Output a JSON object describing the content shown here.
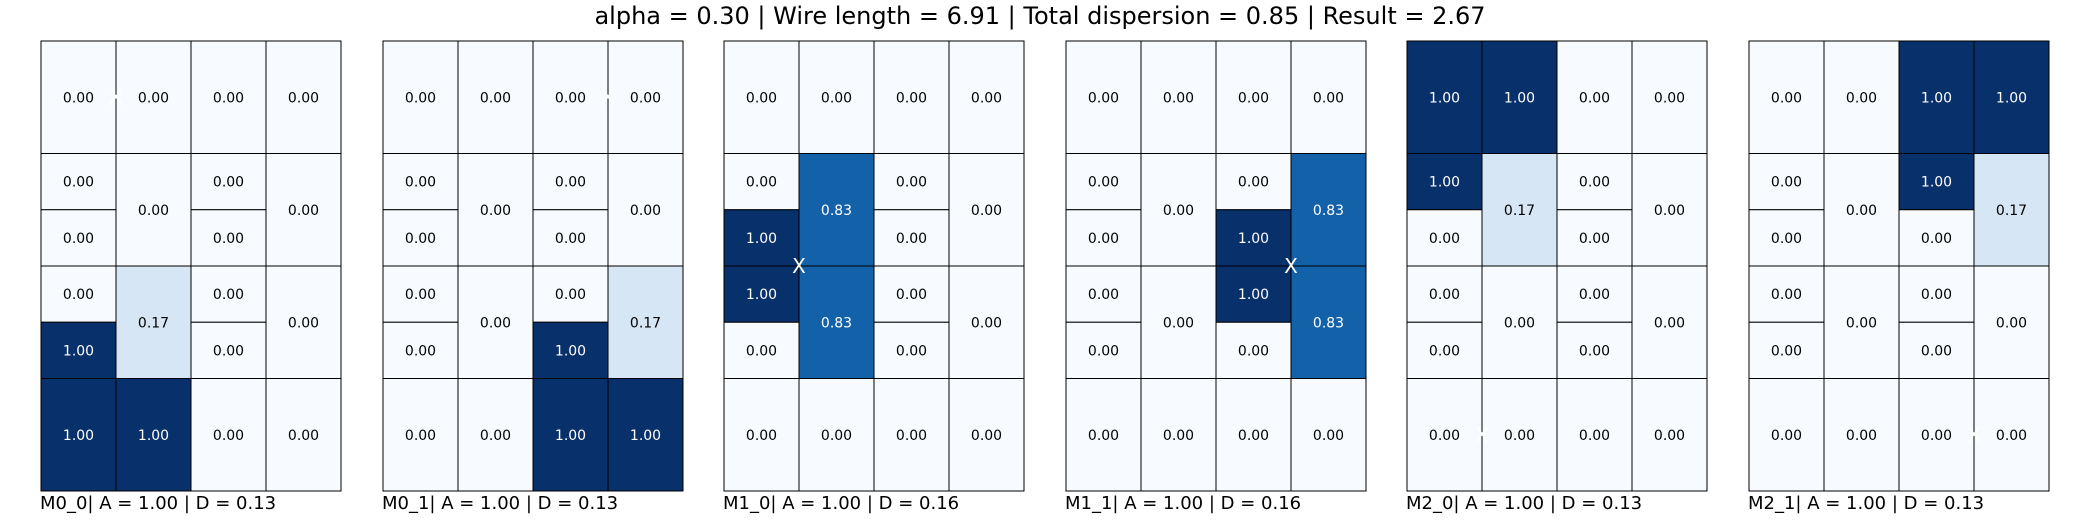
{
  "title": "alpha = 0.30 | Wire length = 6.91 | Total dispersion = 0.85 | Result = 2.67",
  "chart_data": [
    {
      "type": "heatmap",
      "caption": "M0_0| A = 1.00 | D = 0.13",
      "columns": 4,
      "rows": 4,
      "marker": {
        "symbol": "X",
        "x": 1.0,
        "y": 0.5
      },
      "cells": [
        {
          "row": 0,
          "col": 0,
          "rowspan": 1,
          "sub": 0,
          "value": 0.0
        },
        {
          "row": 0,
          "col": 1,
          "rowspan": 1,
          "sub": 0,
          "value": 0.0
        },
        {
          "row": 0,
          "col": 2,
          "rowspan": 1,
          "sub": 0,
          "value": 0.0
        },
        {
          "row": 0,
          "col": 3,
          "rowspan": 1,
          "sub": 0,
          "value": 0.0
        },
        {
          "row": 1,
          "col": 0,
          "rowspan": 0.5,
          "sub": 0,
          "value": 0.0
        },
        {
          "row": 1,
          "col": 0,
          "rowspan": 0.5,
          "sub": 1,
          "value": 0.0
        },
        {
          "row": 1,
          "col": 1,
          "rowspan": 1,
          "sub": 0,
          "value": 0.0
        },
        {
          "row": 1,
          "col": 2,
          "rowspan": 0.5,
          "sub": 0,
          "value": 0.0
        },
        {
          "row": 1,
          "col": 2,
          "rowspan": 0.5,
          "sub": 1,
          "value": 0.0
        },
        {
          "row": 1,
          "col": 3,
          "rowspan": 1,
          "sub": 0,
          "value": 0.0
        },
        {
          "row": 2,
          "col": 0,
          "rowspan": 0.5,
          "sub": 0,
          "value": 0.0
        },
        {
          "row": 2,
          "col": 0,
          "rowspan": 0.5,
          "sub": 1,
          "value": 1.0
        },
        {
          "row": 2,
          "col": 1,
          "rowspan": 1,
          "sub": 0,
          "value": 0.17
        },
        {
          "row": 2,
          "col": 2,
          "rowspan": 0.5,
          "sub": 0,
          "value": 0.0
        },
        {
          "row": 2,
          "col": 2,
          "rowspan": 0.5,
          "sub": 1,
          "value": 0.0
        },
        {
          "row": 2,
          "col": 3,
          "rowspan": 1,
          "sub": 0,
          "value": 0.0
        },
        {
          "row": 3,
          "col": 0,
          "rowspan": 1,
          "sub": 0,
          "value": 1.0
        },
        {
          "row": 3,
          "col": 1,
          "rowspan": 1,
          "sub": 0,
          "value": 1.0
        },
        {
          "row": 3,
          "col": 2,
          "rowspan": 1,
          "sub": 0,
          "value": 0.0
        },
        {
          "row": 3,
          "col": 3,
          "rowspan": 1,
          "sub": 0,
          "value": 0.0
        }
      ]
    },
    {
      "type": "heatmap",
      "caption": "M0_1| A = 1.00 | D = 0.13",
      "columns": 4,
      "rows": 4,
      "marker": {
        "symbol": "X",
        "x": 3.0,
        "y": 0.5
      },
      "cells": [
        {
          "row": 0,
          "col": 0,
          "rowspan": 1,
          "sub": 0,
          "value": 0.0
        },
        {
          "row": 0,
          "col": 1,
          "rowspan": 1,
          "sub": 0,
          "value": 0.0
        },
        {
          "row": 0,
          "col": 2,
          "rowspan": 1,
          "sub": 0,
          "value": 0.0
        },
        {
          "row": 0,
          "col": 3,
          "rowspan": 1,
          "sub": 0,
          "value": 0.0
        },
        {
          "row": 1,
          "col": 0,
          "rowspan": 0.5,
          "sub": 0,
          "value": 0.0
        },
        {
          "row": 1,
          "col": 0,
          "rowspan": 0.5,
          "sub": 1,
          "value": 0.0
        },
        {
          "row": 1,
          "col": 1,
          "rowspan": 1,
          "sub": 0,
          "value": 0.0
        },
        {
          "row": 1,
          "col": 2,
          "rowspan": 0.5,
          "sub": 0,
          "value": 0.0
        },
        {
          "row": 1,
          "col": 2,
          "rowspan": 0.5,
          "sub": 1,
          "value": 0.0
        },
        {
          "row": 1,
          "col": 3,
          "rowspan": 1,
          "sub": 0,
          "value": 0.0
        },
        {
          "row": 2,
          "col": 0,
          "rowspan": 0.5,
          "sub": 0,
          "value": 0.0
        },
        {
          "row": 2,
          "col": 0,
          "rowspan": 0.5,
          "sub": 1,
          "value": 0.0
        },
        {
          "row": 2,
          "col": 1,
          "rowspan": 1,
          "sub": 0,
          "value": 0.0
        },
        {
          "row": 2,
          "col": 2,
          "rowspan": 0.5,
          "sub": 0,
          "value": 0.0
        },
        {
          "row": 2,
          "col": 2,
          "rowspan": 0.5,
          "sub": 1,
          "value": 1.0
        },
        {
          "row": 2,
          "col": 3,
          "rowspan": 1,
          "sub": 0,
          "value": 0.17
        },
        {
          "row": 3,
          "col": 0,
          "rowspan": 1,
          "sub": 0,
          "value": 0.0
        },
        {
          "row": 3,
          "col": 1,
          "rowspan": 1,
          "sub": 0,
          "value": 0.0
        },
        {
          "row": 3,
          "col": 2,
          "rowspan": 1,
          "sub": 0,
          "value": 1.0
        },
        {
          "row": 3,
          "col": 3,
          "rowspan": 1,
          "sub": 0,
          "value": 1.0
        }
      ]
    },
    {
      "type": "heatmap",
      "caption": "M1_0| A = 1.00 | D = 0.16",
      "columns": 4,
      "rows": 4,
      "marker": {
        "symbol": "X",
        "x": 1.0,
        "y": 2.0
      },
      "cells": [
        {
          "row": 0,
          "col": 0,
          "rowspan": 1,
          "sub": 0,
          "value": 0.0
        },
        {
          "row": 0,
          "col": 1,
          "rowspan": 1,
          "sub": 0,
          "value": 0.0
        },
        {
          "row": 0,
          "col": 2,
          "rowspan": 1,
          "sub": 0,
          "value": 0.0
        },
        {
          "row": 0,
          "col": 3,
          "rowspan": 1,
          "sub": 0,
          "value": 0.0
        },
        {
          "row": 1,
          "col": 0,
          "rowspan": 0.5,
          "sub": 0,
          "value": 0.0
        },
        {
          "row": 1,
          "col": 0,
          "rowspan": 0.5,
          "sub": 1,
          "value": 1.0
        },
        {
          "row": 1,
          "col": 1,
          "rowspan": 1,
          "sub": 0,
          "value": 0.83
        },
        {
          "row": 1,
          "col": 2,
          "rowspan": 0.5,
          "sub": 0,
          "value": 0.0
        },
        {
          "row": 1,
          "col": 2,
          "rowspan": 0.5,
          "sub": 1,
          "value": 0.0
        },
        {
          "row": 1,
          "col": 3,
          "rowspan": 1,
          "sub": 0,
          "value": 0.0
        },
        {
          "row": 2,
          "col": 0,
          "rowspan": 0.5,
          "sub": 0,
          "value": 1.0
        },
        {
          "row": 2,
          "col": 0,
          "rowspan": 0.5,
          "sub": 1,
          "value": 0.0
        },
        {
          "row": 2,
          "col": 1,
          "rowspan": 1,
          "sub": 0,
          "value": 0.83
        },
        {
          "row": 2,
          "col": 2,
          "rowspan": 0.5,
          "sub": 0,
          "value": 0.0
        },
        {
          "row": 2,
          "col": 2,
          "rowspan": 0.5,
          "sub": 1,
          "value": 0.0
        },
        {
          "row": 2,
          "col": 3,
          "rowspan": 1,
          "sub": 0,
          "value": 0.0
        },
        {
          "row": 3,
          "col": 0,
          "rowspan": 1,
          "sub": 0,
          "value": 0.0
        },
        {
          "row": 3,
          "col": 1,
          "rowspan": 1,
          "sub": 0,
          "value": 0.0
        },
        {
          "row": 3,
          "col": 2,
          "rowspan": 1,
          "sub": 0,
          "value": 0.0
        },
        {
          "row": 3,
          "col": 3,
          "rowspan": 1,
          "sub": 0,
          "value": 0.0
        }
      ]
    },
    {
      "type": "heatmap",
      "caption": "M1_1| A = 1.00 | D = 0.16",
      "columns": 4,
      "rows": 4,
      "marker": {
        "symbol": "X",
        "x": 3.0,
        "y": 2.0
      },
      "cells": [
        {
          "row": 0,
          "col": 0,
          "rowspan": 1,
          "sub": 0,
          "value": 0.0
        },
        {
          "row": 0,
          "col": 1,
          "rowspan": 1,
          "sub": 0,
          "value": 0.0
        },
        {
          "row": 0,
          "col": 2,
          "rowspan": 1,
          "sub": 0,
          "value": 0.0
        },
        {
          "row": 0,
          "col": 3,
          "rowspan": 1,
          "sub": 0,
          "value": 0.0
        },
        {
          "row": 1,
          "col": 0,
          "rowspan": 0.5,
          "sub": 0,
          "value": 0.0
        },
        {
          "row": 1,
          "col": 0,
          "rowspan": 0.5,
          "sub": 1,
          "value": 0.0
        },
        {
          "row": 1,
          "col": 1,
          "rowspan": 1,
          "sub": 0,
          "value": 0.0
        },
        {
          "row": 1,
          "col": 2,
          "rowspan": 0.5,
          "sub": 0,
          "value": 0.0
        },
        {
          "row": 1,
          "col": 2,
          "rowspan": 0.5,
          "sub": 1,
          "value": 1.0
        },
        {
          "row": 1,
          "col": 3,
          "rowspan": 1,
          "sub": 0,
          "value": 0.83
        },
        {
          "row": 2,
          "col": 0,
          "rowspan": 0.5,
          "sub": 0,
          "value": 0.0
        },
        {
          "row": 2,
          "col": 0,
          "rowspan": 0.5,
          "sub": 1,
          "value": 0.0
        },
        {
          "row": 2,
          "col": 1,
          "rowspan": 1,
          "sub": 0,
          "value": 0.0
        },
        {
          "row": 2,
          "col": 2,
          "rowspan": 0.5,
          "sub": 0,
          "value": 1.0
        },
        {
          "row": 2,
          "col": 2,
          "rowspan": 0.5,
          "sub": 1,
          "value": 0.0
        },
        {
          "row": 2,
          "col": 3,
          "rowspan": 1,
          "sub": 0,
          "value": 0.83
        },
        {
          "row": 3,
          "col": 0,
          "rowspan": 1,
          "sub": 0,
          "value": 0.0
        },
        {
          "row": 3,
          "col": 1,
          "rowspan": 1,
          "sub": 0,
          "value": 0.0
        },
        {
          "row": 3,
          "col": 2,
          "rowspan": 1,
          "sub": 0,
          "value": 0.0
        },
        {
          "row": 3,
          "col": 3,
          "rowspan": 1,
          "sub": 0,
          "value": 0.0
        }
      ]
    },
    {
      "type": "heatmap",
      "caption": "M2_0| A = 1.00 | D = 0.13",
      "columns": 4,
      "rows": 4,
      "marker": {
        "symbol": "X",
        "x": 1.0,
        "y": 3.5
      },
      "cells": [
        {
          "row": 0,
          "col": 0,
          "rowspan": 1,
          "sub": 0,
          "value": 1.0
        },
        {
          "row": 0,
          "col": 1,
          "rowspan": 1,
          "sub": 0,
          "value": 1.0
        },
        {
          "row": 0,
          "col": 2,
          "rowspan": 1,
          "sub": 0,
          "value": 0.0
        },
        {
          "row": 0,
          "col": 3,
          "rowspan": 1,
          "sub": 0,
          "value": 0.0
        },
        {
          "row": 1,
          "col": 0,
          "rowspan": 0.5,
          "sub": 0,
          "value": 1.0
        },
        {
          "row": 1,
          "col": 0,
          "rowspan": 0.5,
          "sub": 1,
          "value": 0.0
        },
        {
          "row": 1,
          "col": 1,
          "rowspan": 1,
          "sub": 0,
          "value": 0.17
        },
        {
          "row": 1,
          "col": 2,
          "rowspan": 0.5,
          "sub": 0,
          "value": 0.0
        },
        {
          "row": 1,
          "col": 2,
          "rowspan": 0.5,
          "sub": 1,
          "value": 0.0
        },
        {
          "row": 1,
          "col": 3,
          "rowspan": 1,
          "sub": 0,
          "value": 0.0
        },
        {
          "row": 2,
          "col": 0,
          "rowspan": 0.5,
          "sub": 0,
          "value": 0.0
        },
        {
          "row": 2,
          "col": 0,
          "rowspan": 0.5,
          "sub": 1,
          "value": 0.0
        },
        {
          "row": 2,
          "col": 1,
          "rowspan": 1,
          "sub": 0,
          "value": 0.0
        },
        {
          "row": 2,
          "col": 2,
          "rowspan": 0.5,
          "sub": 0,
          "value": 0.0
        },
        {
          "row": 2,
          "col": 2,
          "rowspan": 0.5,
          "sub": 1,
          "value": 0.0
        },
        {
          "row": 2,
          "col": 3,
          "rowspan": 1,
          "sub": 0,
          "value": 0.0
        },
        {
          "row": 3,
          "col": 0,
          "rowspan": 1,
          "sub": 0,
          "value": 0.0
        },
        {
          "row": 3,
          "col": 1,
          "rowspan": 1,
          "sub": 0,
          "value": 0.0
        },
        {
          "row": 3,
          "col": 2,
          "rowspan": 1,
          "sub": 0,
          "value": 0.0
        },
        {
          "row": 3,
          "col": 3,
          "rowspan": 1,
          "sub": 0,
          "value": 0.0
        }
      ]
    },
    {
      "type": "heatmap",
      "caption": "M2_1| A = 1.00 | D = 0.13",
      "columns": 4,
      "rows": 4,
      "marker": {
        "symbol": "X",
        "x": 3.0,
        "y": 3.5
      },
      "cells": [
        {
          "row": 0,
          "col": 0,
          "rowspan": 1,
          "sub": 0,
          "value": 0.0
        },
        {
          "row": 0,
          "col": 1,
          "rowspan": 1,
          "sub": 0,
          "value": 0.0
        },
        {
          "row": 0,
          "col": 2,
          "rowspan": 1,
          "sub": 0,
          "value": 1.0
        },
        {
          "row": 0,
          "col": 3,
          "rowspan": 1,
          "sub": 0,
          "value": 1.0
        },
        {
          "row": 1,
          "col": 0,
          "rowspan": 0.5,
          "sub": 0,
          "value": 0.0
        },
        {
          "row": 1,
          "col": 0,
          "rowspan": 0.5,
          "sub": 1,
          "value": 0.0
        },
        {
          "row": 1,
          "col": 1,
          "rowspan": 1,
          "sub": 0,
          "value": 0.0
        },
        {
          "row": 1,
          "col": 2,
          "rowspan": 0.5,
          "sub": 0,
          "value": 1.0
        },
        {
          "row": 1,
          "col": 2,
          "rowspan": 0.5,
          "sub": 1,
          "value": 0.0
        },
        {
          "row": 1,
          "col": 3,
          "rowspan": 1,
          "sub": 0,
          "value": 0.17
        },
        {
          "row": 2,
          "col": 0,
          "rowspan": 0.5,
          "sub": 0,
          "value": 0.0
        },
        {
          "row": 2,
          "col": 0,
          "rowspan": 0.5,
          "sub": 1,
          "value": 0.0
        },
        {
          "row": 2,
          "col": 1,
          "rowspan": 1,
          "sub": 0,
          "value": 0.0
        },
        {
          "row": 2,
          "col": 2,
          "rowspan": 0.5,
          "sub": 0,
          "value": 0.0
        },
        {
          "row": 2,
          "col": 2,
          "rowspan": 0.5,
          "sub": 1,
          "value": 0.0
        },
        {
          "row": 2,
          "col": 3,
          "rowspan": 1,
          "sub": 0,
          "value": 0.0
        },
        {
          "row": 3,
          "col": 0,
          "rowspan": 1,
          "sub": 0,
          "value": 0.0
        },
        {
          "row": 3,
          "col": 1,
          "rowspan": 1,
          "sub": 0,
          "value": 0.0
        },
        {
          "row": 3,
          "col": 2,
          "rowspan": 1,
          "sub": 0,
          "value": 0.0
        },
        {
          "row": 3,
          "col": 3,
          "rowspan": 1,
          "sub": 0,
          "value": 0.0
        }
      ]
    }
  ],
  "colors": {
    "zero": "#f7fbff",
    "low": "#d6e6f4",
    "mid": "#1361a9",
    "high": "#08306b",
    "dark_text": "#000000",
    "light_text": "#ffffff"
  }
}
